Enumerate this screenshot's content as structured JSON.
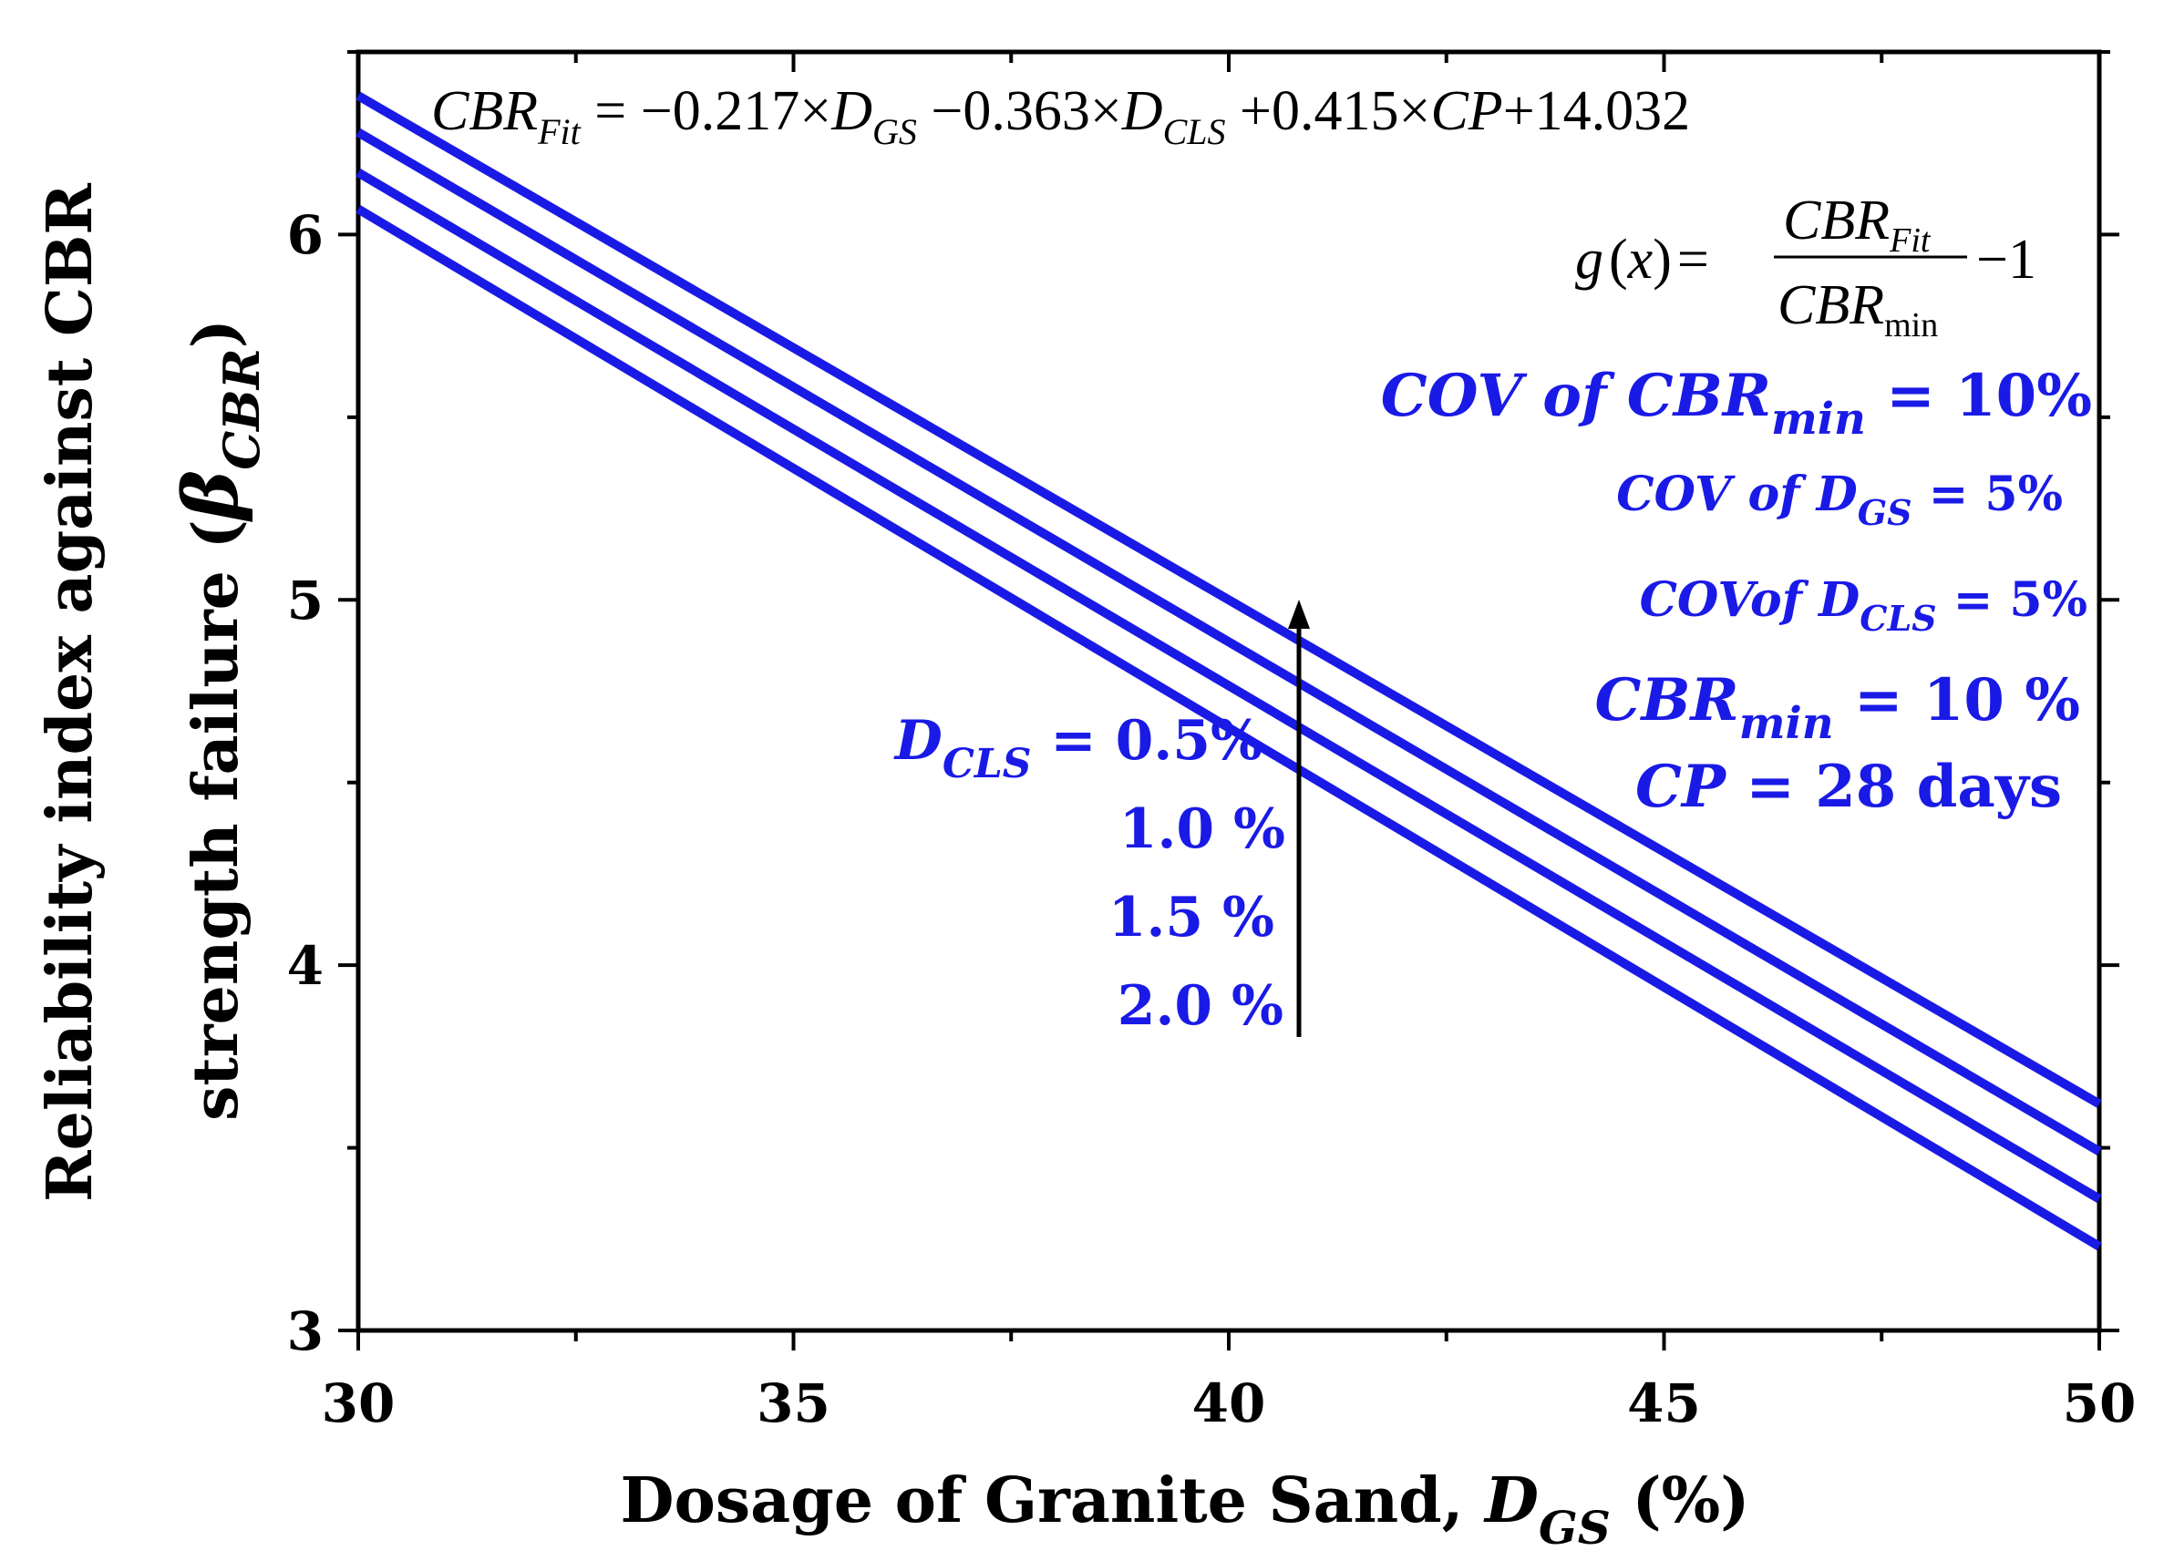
{
  "chart_data": {
    "type": "line",
    "x": [
      30,
      50
    ],
    "xlim": [
      30,
      50
    ],
    "ylim": [
      3,
      6.5
    ],
    "x_ticks": [
      30,
      35,
      40,
      45,
      50
    ],
    "y_ticks": [
      3,
      4,
      5,
      6
    ],
    "x_tick_labels": [
      "30",
      "35",
      "40",
      "45",
      "50"
    ],
    "y_tick_labels": [
      "3",
      "4",
      "5",
      "6"
    ],
    "series": [
      {
        "name": "D_CLS = 0.5%",
        "values": [
          6.38,
          3.62
        ]
      },
      {
        "name": "D_CLS = 1.0 %",
        "values": [
          6.28,
          3.49
        ]
      },
      {
        "name": "D_CLS = 1.5 %",
        "values": [
          6.17,
          3.36
        ]
      },
      {
        "name": "D_CLS = 2.0 %",
        "values": [
          6.07,
          3.23
        ]
      }
    ],
    "line_color": "#1a1ae6",
    "xlabel": {
      "main": "Dosage of Granite Sand, ",
      "var": "D",
      "sub": "GS",
      "unit": " (%)"
    },
    "ylabel": {
      "line1": "Reliability index against CBR",
      "line2": "strength failure (",
      "beta": "β",
      "beta_sub": "CBR",
      "close": ")"
    },
    "equation_fit": {
      "lhs": "CBR",
      "lhs_sub": "Fit",
      "eq": " =  ",
      "t1": "−0.217×",
      "t1v": "D",
      "t1s": "GS",
      "t2": " −0.363×",
      "t2v": "D",
      "t2s": "CLS",
      "t3": " +0.415×",
      "t3v": "CP",
      "t4": "+14.032"
    },
    "equation_g": {
      "g": "g",
      "x": "x",
      "lparen": "(",
      "rparen": ")",
      "equals": "=",
      "num": "CBR",
      "num_sub": "Fit",
      "den": "CBR",
      "den_sub": "min",
      "minus_one": "−1"
    },
    "annotations": {
      "cov_cbr": {
        "pre": "COV of CBR",
        "sub": "min",
        "post": " = 10%"
      },
      "cov_dgs": {
        "pre": "COV of D",
        "sub": "GS",
        "post": " = 5%"
      },
      "cov_dcls": {
        "pre": "COVof D",
        "sub": "CLS",
        "post": "  = 5%"
      },
      "cbr_min": {
        "pre": "CBR",
        "sub": "min",
        "post": " =  10 %"
      },
      "cp": {
        "pre": "CP",
        "post": " = 28 days"
      },
      "dcls_label": {
        "pre": "D",
        "sub": "CLS",
        "post": " =  0.5%"
      },
      "dcls_values": [
        "1.0 %",
        "1.5 %",
        "2.0 %"
      ]
    },
    "arrow_color": "#000000"
  }
}
